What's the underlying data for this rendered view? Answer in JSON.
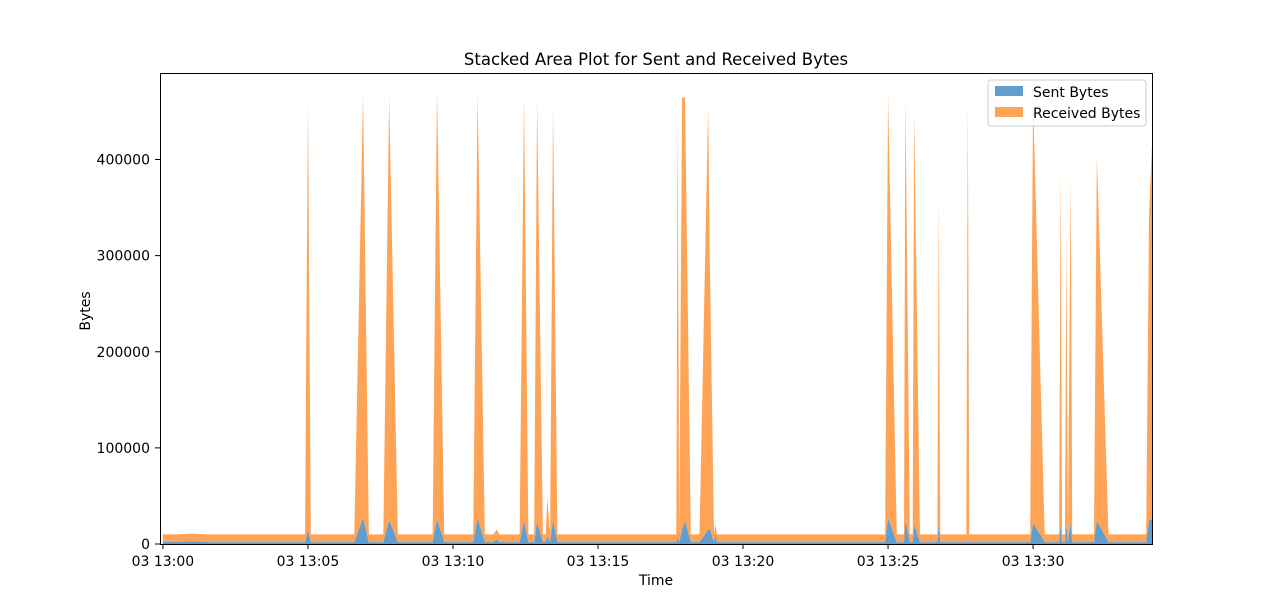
{
  "chart_data": {
    "type": "area",
    "stacked": true,
    "title": "Stacked Area Plot for Sent and Received Bytes",
    "xlabel": "Time",
    "ylabel": "Bytes",
    "xlim_minutes": [
      -0.1,
      34.1
    ],
    "ylim": [
      0,
      490000
    ],
    "x_ticks": [
      {
        "value": 0,
        "label": "03 13:00"
      },
      {
        "value": 5,
        "label": "03 13:05"
      },
      {
        "value": 10,
        "label": "03 13:10"
      },
      {
        "value": 15,
        "label": "03 13:15"
      },
      {
        "value": 20,
        "label": "03 13:20"
      },
      {
        "value": 25,
        "label": "03 13:25"
      },
      {
        "value": 30,
        "label": "03 13:30"
      }
    ],
    "y_ticks": [
      0,
      100000,
      200000,
      300000,
      400000
    ],
    "y_tick_labels": [
      "0",
      "100000",
      "200000",
      "300000",
      "400000"
    ],
    "legend": {
      "position": "top-right",
      "entries": [
        "Sent Bytes",
        "Received Bytes"
      ]
    },
    "grid": false,
    "x_minutes": [
      0,
      0.5,
      1,
      1.5,
      4.9,
      5.0,
      5.1,
      6.6,
      6.9,
      7.1,
      7.6,
      7.8,
      8.1,
      9.3,
      9.45,
      9.7,
      10.7,
      10.85,
      11.1,
      11.4,
      11.5,
      11.6,
      12.3,
      12.45,
      12.6,
      12.8,
      12.9,
      13.1,
      13.2,
      13.25,
      13.35,
      13.45,
      13.6,
      17.7,
      17.75,
      17.8,
      17.9,
      18.0,
      18.2,
      18.5,
      18.8,
      18.85,
      19.0,
      19.05,
      19.1,
      19.2,
      24.9,
      25.0,
      25.3,
      25.55,
      25.6,
      25.75,
      25.85,
      25.9,
      26.1,
      26.7,
      26.75,
      26.8,
      27.7,
      27.75,
      27.8,
      29.9,
      30.0,
      30.4,
      30.9,
      30.95,
      31.0,
      31.1,
      31.15,
      31.2,
      31.3,
      31.35,
      31.5,
      32.1,
      32.2,
      32.6,
      33.9,
      34.0,
      34.1
    ],
    "series": [
      {
        "name": "Sent Bytes",
        "color": "#5f9ecf",
        "values": [
          2200,
          2000,
          2800,
          2000,
          2000,
          15000,
          2000,
          2000,
          27000,
          2000,
          2000,
          25000,
          2000,
          2000,
          26000,
          2000,
          2000,
          27000,
          2000,
          2000,
          5000,
          2000,
          2000,
          25000,
          2000,
          2000,
          23000,
          2000,
          2000,
          8000,
          2000,
          25000,
          2000,
          2000,
          8000,
          2000,
          15000,
          24000,
          2000,
          2000,
          15000,
          16000,
          2000,
          12000,
          2000,
          2000,
          2000,
          27000,
          2000,
          2000,
          25000,
          2000,
          2000,
          20000,
          2000,
          2000,
          20000,
          2000,
          2000,
          2500,
          2000,
          2000,
          22000,
          2000,
          2000,
          20000,
          2000,
          2000,
          20000,
          2000,
          22000,
          2000,
          2000,
          2000,
          24000,
          2000,
          2000,
          25000,
          25000
        ]
      },
      {
        "name": "Received Bytes",
        "color": "#ffa356",
        "values": [
          8000,
          8000,
          8000,
          8000,
          8000,
          445000,
          8000,
          8000,
          440000,
          8000,
          8000,
          440000,
          8000,
          8000,
          447000,
          8000,
          8000,
          440000,
          8000,
          8000,
          10000,
          8000,
          8000,
          440000,
          8000,
          8000,
          440000,
          8000,
          8000,
          40000,
          8000,
          430000,
          8000,
          8000,
          440000,
          8000,
          450000,
          440000,
          8000,
          8000,
          440000,
          290000,
          8000,
          8000,
          8000,
          8000,
          8000,
          440000,
          8000,
          8000,
          440000,
          8000,
          8000,
          430000,
          8000,
          8000,
          340000,
          8000,
          8000,
          460000,
          8000,
          8000,
          440000,
          8000,
          8000,
          370000,
          8000,
          8000,
          300000,
          8000,
          360000,
          8000,
          8000,
          8000,
          380000,
          8000,
          8000,
          320000,
          390000
        ]
      }
    ]
  }
}
